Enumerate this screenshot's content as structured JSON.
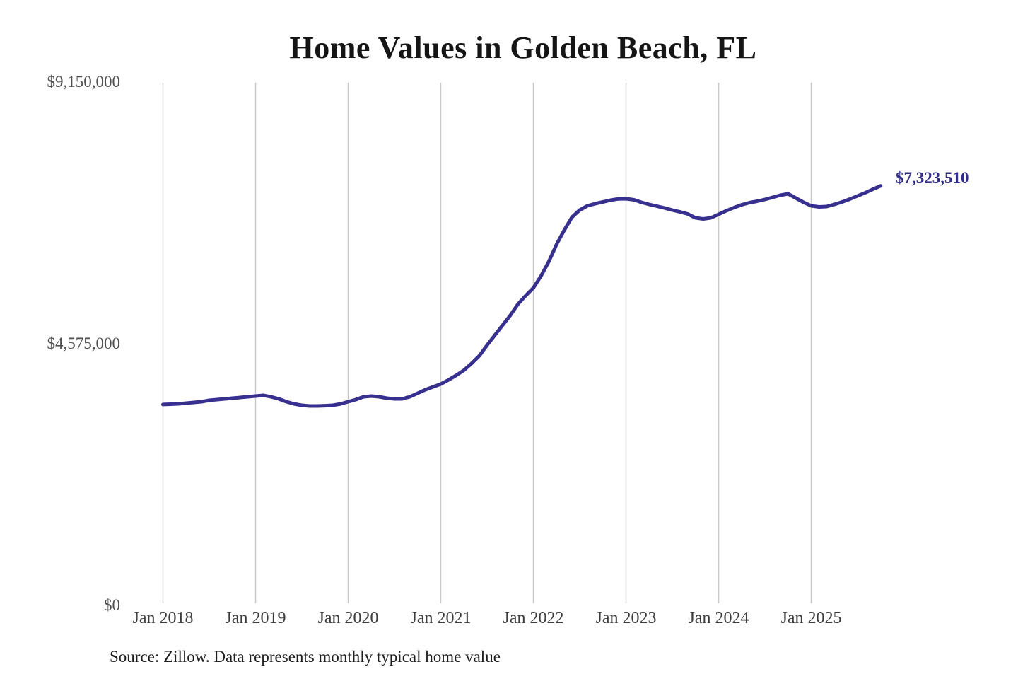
{
  "title": "Home Values in Golden Beach, FL",
  "annotation": {
    "end_value_label": "$7,323,510"
  },
  "footer": {
    "source_note": "Source: Zillow. Data represents monthly typical home value"
  },
  "colors": {
    "line": "#37308f",
    "end_label_text": "#302e87",
    "grid": "#c9c9c9",
    "y_tick_text": "#4f4f4f",
    "x_tick_text": "#3c3c3c",
    "title_text": "#151515",
    "source_text": "#1e1e1e",
    "background": "#ffffff"
  },
  "y_axis": {
    "max": 9150000,
    "ticks": [
      {
        "label": "$9,150,000",
        "value": 9150000
      },
      {
        "label": "$4,575,000",
        "value": 4575000
      },
      {
        "label": "$0",
        "value": 0
      }
    ]
  },
  "x_axis": {
    "ticks": [
      "Jan 2018",
      "Jan 2019",
      "Jan 2020",
      "Jan 2021",
      "Jan 2022",
      "Jan 2023",
      "Jan 2024",
      "Jan 2025"
    ]
  },
  "chart_data": {
    "type": "line",
    "title": "Home Values in Golden Beach, FL",
    "xlabel": "",
    "ylabel": "",
    "ylim": [
      0,
      9150000
    ],
    "grid": "vertical",
    "legend_position": "none",
    "latest_value": 7323510,
    "latest_value_label": "$7,323,510",
    "source": "Source: Zillow. Data represents monthly typical home value",
    "x": [
      "2018-01",
      "2018-02",
      "2018-03",
      "2018-04",
      "2018-05",
      "2018-06",
      "2018-07",
      "2018-08",
      "2018-09",
      "2018-10",
      "2018-11",
      "2018-12",
      "2019-01",
      "2019-02",
      "2019-03",
      "2019-04",
      "2019-05",
      "2019-06",
      "2019-07",
      "2019-08",
      "2019-09",
      "2019-10",
      "2019-11",
      "2019-12",
      "2020-01",
      "2020-02",
      "2020-03",
      "2020-04",
      "2020-05",
      "2020-06",
      "2020-07",
      "2020-08",
      "2020-09",
      "2020-10",
      "2020-11",
      "2020-12",
      "2021-01",
      "2021-02",
      "2021-03",
      "2021-04",
      "2021-05",
      "2021-06",
      "2021-07",
      "2021-08",
      "2021-09",
      "2021-10",
      "2021-11",
      "2021-12",
      "2022-01",
      "2022-02",
      "2022-03",
      "2022-04",
      "2022-05",
      "2022-06",
      "2022-07",
      "2022-08",
      "2022-09",
      "2022-10",
      "2022-11",
      "2022-12",
      "2023-01",
      "2023-02",
      "2023-03",
      "2023-04",
      "2023-05",
      "2023-06",
      "2023-07",
      "2023-08",
      "2023-09",
      "2023-10",
      "2023-11",
      "2023-12",
      "2024-01",
      "2024-02",
      "2024-03",
      "2024-04",
      "2024-05",
      "2024-06",
      "2024-07",
      "2024-08",
      "2024-09",
      "2024-10",
      "2024-11",
      "2024-12",
      "2025-01",
      "2025-02",
      "2025-03",
      "2025-04",
      "2025-05",
      "2025-06",
      "2025-07",
      "2025-08",
      "2025-09",
      "2025-10"
    ],
    "series": [
      {
        "name": "Typical home value",
        "values": [
          3500000,
          3505000,
          3512000,
          3524000,
          3536000,
          3549000,
          3573000,
          3586000,
          3598000,
          3610000,
          3623000,
          3635000,
          3648000,
          3660000,
          3635000,
          3598000,
          3549000,
          3510000,
          3487000,
          3474000,
          3474000,
          3480000,
          3487000,
          3510000,
          3549000,
          3586000,
          3635000,
          3648000,
          3635000,
          3610000,
          3598000,
          3598000,
          3635000,
          3697000,
          3759000,
          3808000,
          3858000,
          3930000,
          4010000,
          4100000,
          4220000,
          4352000,
          4538000,
          4711000,
          4884000,
          5057000,
          5255000,
          5403000,
          5539000,
          5750000,
          6000000,
          6300000,
          6550000,
          6776000,
          6900000,
          6974000,
          7011000,
          7042000,
          7073000,
          7095000,
          7097000,
          7080000,
          7036000,
          6998000,
          6967000,
          6936000,
          6900000,
          6868000,
          6831000,
          6764000,
          6745000,
          6764000,
          6825000,
          6887000,
          6943000,
          6992000,
          7029000,
          7054000,
          7085000,
          7122000,
          7159000,
          7184000,
          7110000,
          7036000,
          6974000,
          6955000,
          6961000,
          6998000,
          7042000,
          7091000,
          7147000,
          7203000,
          7264000,
          7323510
        ]
      }
    ]
  }
}
